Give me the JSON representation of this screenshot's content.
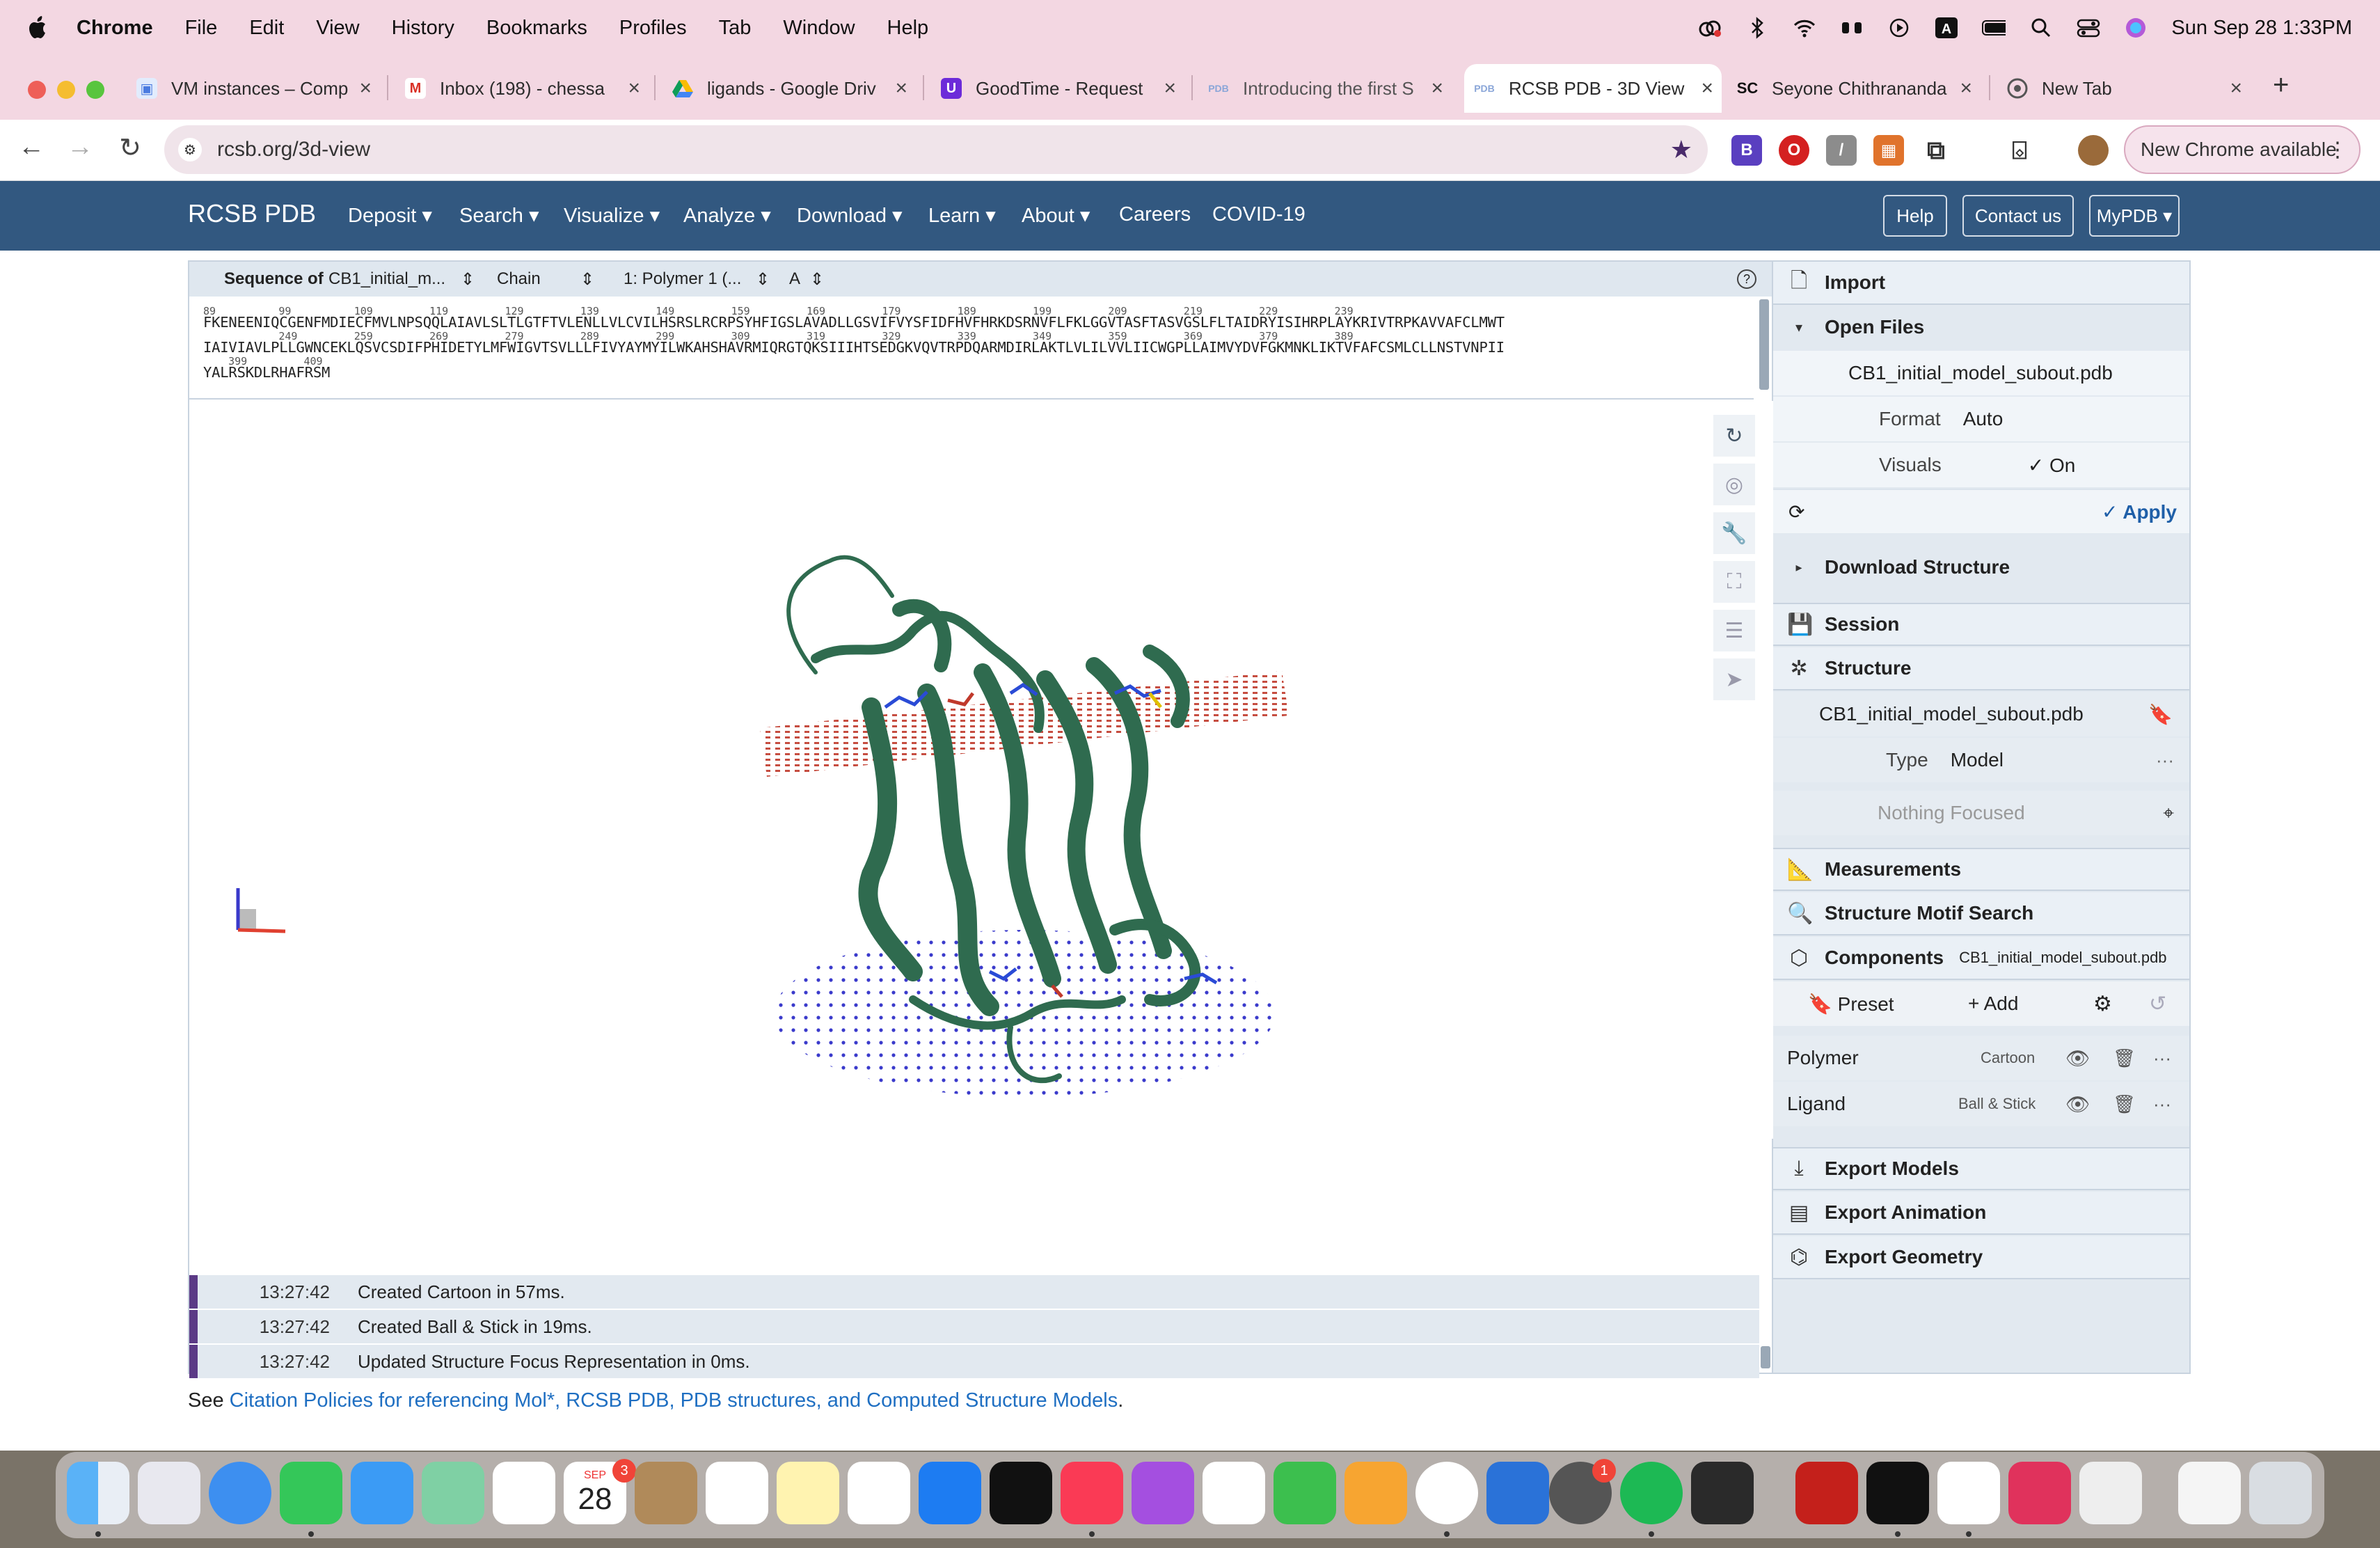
{
  "menubar": {
    "app": "Chrome",
    "items": [
      "File",
      "Edit",
      "View",
      "History",
      "Bookmarks",
      "Profiles",
      "Tab",
      "Window",
      "Help"
    ],
    "clock": "Sun Sep 28  1:33PM"
  },
  "tabs": [
    {
      "title": "VM instances – Comp",
      "icon": "chip-icon"
    },
    {
      "title": "Inbox (198) - chessa",
      "icon": "gmail-icon"
    },
    {
      "title": "ligands - Google Driv",
      "icon": "drive-icon"
    },
    {
      "title": "GoodTime - Request",
      "icon": "goodtime-icon"
    },
    {
      "title": "Introducing the first S",
      "icon": "pdb-icon"
    },
    {
      "title": "RCSB PDB - 3D View",
      "icon": "pdb-icon"
    },
    {
      "title": "Seyone Chithrananda",
      "icon": "sc-icon"
    },
    {
      "title": "New Tab",
      "icon": "chrome-icon"
    }
  ],
  "address": {
    "url": "rcsb.org/3d-view",
    "new_chrome": "New Chrome available"
  },
  "rcsb_nav": {
    "brand": "RCSB PDB",
    "items": [
      "Deposit",
      "Search",
      "Visualize",
      "Analyze",
      "Download",
      "Learn",
      "About"
    ],
    "plain_items": [
      "Careers",
      "COVID-19"
    ],
    "buttons": [
      "Help",
      "Contact us",
      "MyPDB"
    ]
  },
  "sequence": {
    "label": "Sequence of",
    "entity": "CB1_initial_m...",
    "mode": "Chain",
    "polymer": "1: Polymer 1 (...",
    "chain": "A",
    "nums1": "89          99          109         119         129         139         149         159         169         179         189         199         209         219         229         239",
    "line1": "FKENEENIQCGENFMDIECFMVLNPSQQLAIAVLSLTLGTFTVLENLLVLCVILHSRSLRCRPSYHFIGSLAVADLLGSVIFVYSFIDFHVFHRKDSRNVFLFKLGGVTASFTASVGSLFLTAIDRYISIHRPLAYKRIVTRPKAVVAFCLMWT",
    "nums2": "            249         259         269         279         289         299         309         319         329         339         349         359         369         379         389",
    "line2": "IAIVIAVLPLLGWNCEKLQSVCSDIFPHIDETYLMFWIGVTSVLLLFIVYAYMYILWKAHSHAVRMIQRGTQKSIIIHTSEDGKVQVTRPDQARMDIRLAKTLVLILVVLIICWGPLLAIMVYDVFGKMNKLIKTVFAFCSMLCLLNSTVNPII",
    "nums3": "    399         409",
    "line3": "YALRSKDLRHAFRSM"
  },
  "log": [
    {
      "time": "13:27:42",
      "msg": "Created Cartoon in 57ms."
    },
    {
      "time": "13:27:42",
      "msg": "Created Ball & Stick in 19ms."
    },
    {
      "time": "13:27:42",
      "msg": "Updated Structure Focus Representation in 0ms."
    }
  ],
  "citation": {
    "prefix": "See ",
    "link": "Citation Policies for referencing Mol*, RCSB PDB, PDB structures, and Computed Structure Models",
    "suffix": "."
  },
  "panel": {
    "import": "Import",
    "open_files": "Open Files",
    "file": "CB1_initial_model_subout.pdb",
    "format_label": "Format",
    "format_value": "Auto",
    "visuals_label": "Visuals",
    "visuals_value": "On",
    "apply": "Apply",
    "download_structure": "Download Structure",
    "session": "Session",
    "structure": "Structure",
    "structure_file": "CB1_initial_model_subout.pdb",
    "type_label": "Type",
    "type_value": "Model",
    "nothing_focused": "Nothing Focused",
    "measurements": "Measurements",
    "motif_search": "Structure Motif Search",
    "components": "Components",
    "components_file": "CB1_initial_model_subout.pdb",
    "preset": "Preset",
    "add": "Add",
    "polymer": "Polymer",
    "polymer_repr": "Cartoon",
    "ligand": "Ligand",
    "ligand_repr": "Ball & Stick",
    "export_models": "Export Models",
    "export_animation": "Export Animation",
    "export_geometry": "Export Geometry"
  },
  "dock": {
    "calendar_month": "SEP",
    "calendar_day": "28",
    "calendar_badge": "3",
    "settings_badge": "1"
  },
  "colors": {
    "nav": "#325880",
    "menubar": "#f3d7e2",
    "protein": "#2f6b4f",
    "membrane_top": "#c0392b",
    "membrane_bottom": "#3a3acb",
    "log_accent": "#5b3a86"
  }
}
